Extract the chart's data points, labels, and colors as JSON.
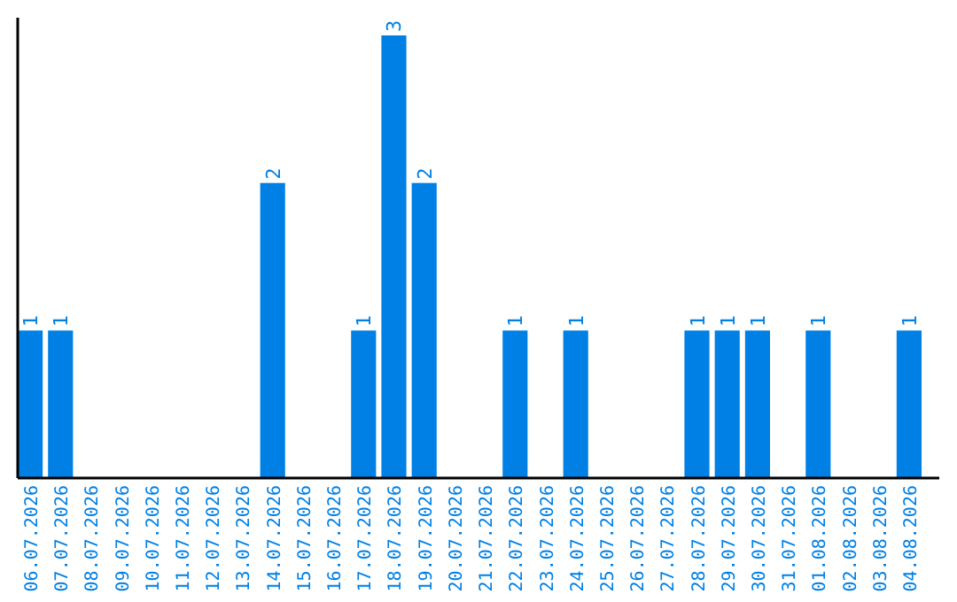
{
  "chart_data": {
    "type": "bar",
    "categories": [
      "06.07.2026",
      "07.07.2026",
      "08.07.2026",
      "09.07.2026",
      "10.07.2026",
      "11.07.2026",
      "12.07.2026",
      "13.07.2026",
      "14.07.2026",
      "15.07.2026",
      "16.07.2026",
      "17.07.2026",
      "18.07.2026",
      "19.07.2026",
      "20.07.2026",
      "21.07.2026",
      "22.07.2026",
      "23.07.2026",
      "24.07.2026",
      "25.07.2026",
      "26.07.2026",
      "27.07.2026",
      "28.07.2026",
      "29.07.2026",
      "30.07.2026",
      "31.07.2026",
      "01.08.2026",
      "02.08.2026",
      "03.08.2026",
      "04.08.2026"
    ],
    "values": [
      1,
      1,
      0,
      0,
      0,
      0,
      0,
      0,
      2,
      0,
      0,
      1,
      3,
      2,
      0,
      0,
      1,
      0,
      1,
      0,
      0,
      0,
      1,
      1,
      1,
      0,
      1,
      0,
      0,
      1
    ],
    "value_labels": [
      "1",
      "1",
      null,
      null,
      null,
      null,
      null,
      null,
      "2",
      null,
      null,
      "1",
      "3",
      "2",
      null,
      null,
      "1",
      null,
      "1",
      null,
      null,
      null,
      "1",
      "1",
      "1",
      null,
      "1",
      null,
      null,
      "1"
    ],
    "color": "#0080e5",
    "tick_labels": "x"
  }
}
